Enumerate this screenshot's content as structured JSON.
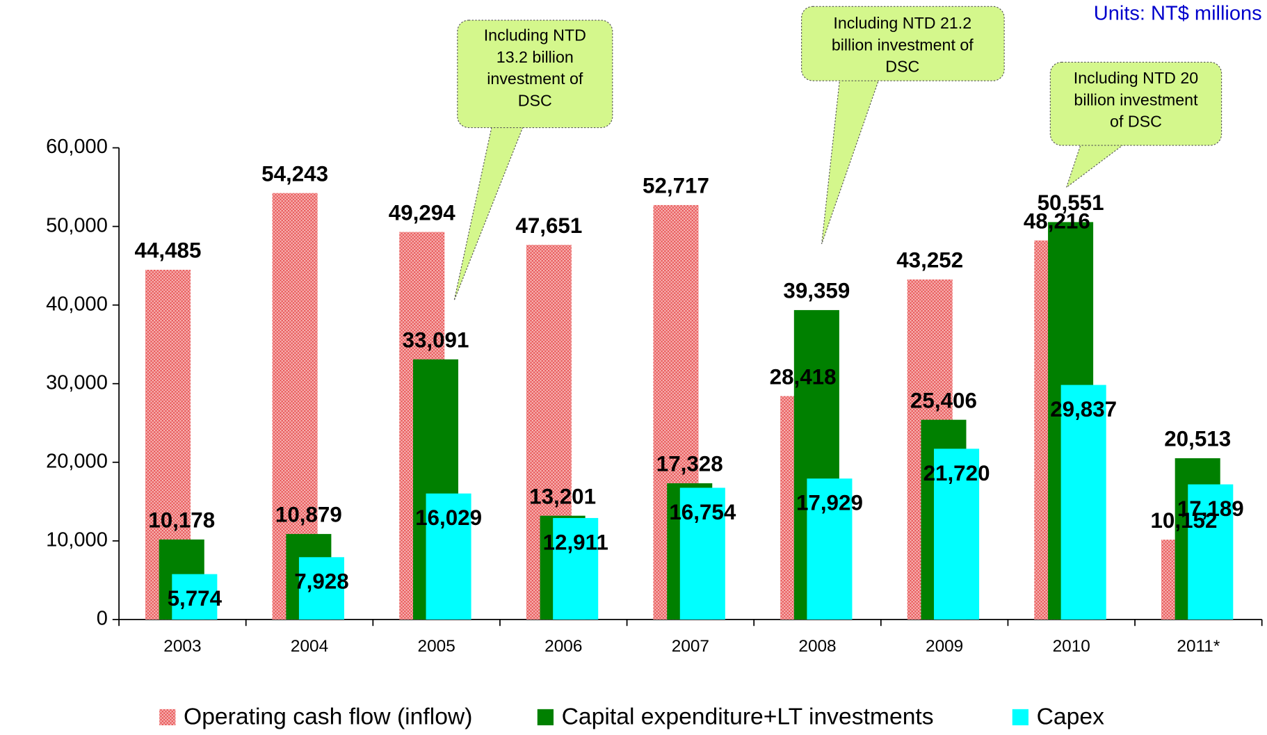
{
  "chart_data": {
    "type": "bar",
    "units": "Units: NT$ millions",
    "categories": [
      "2003",
      "2004",
      "2005",
      "2006",
      "2007",
      "2008",
      "2009",
      "2010",
      "2011*"
    ],
    "series": [
      {
        "name": "Operating cash flow (inflow)",
        "color": "#f08080",
        "values": [
          44485,
          54243,
          49294,
          47651,
          52717,
          28418,
          43252,
          48216,
          10152
        ],
        "value_labels": [
          "44,485",
          "54,243",
          "49,294",
          "47,651",
          "52,717",
          "28,418",
          "43,252",
          "48,216",
          "10,152"
        ]
      },
      {
        "name": "Capital expenditure+LT investments",
        "color": "#008000",
        "values": [
          10178,
          10879,
          33091,
          13201,
          17328,
          39359,
          25406,
          50551,
          20513
        ],
        "value_labels": [
          "10,178",
          "10,879",
          "33,091",
          "13,201",
          "17,328",
          "39,359",
          "25,406",
          "50,551",
          "20,513"
        ]
      },
      {
        "name": "Capex",
        "color": "#00ffff",
        "values": [
          5774,
          7928,
          16029,
          12911,
          16754,
          17929,
          21720,
          29837,
          17189
        ],
        "value_labels": [
          "5,774",
          "7,928",
          "16,029",
          "12,911",
          "16,754",
          "17,929",
          "21,720",
          "29,837",
          "17,189"
        ]
      }
    ],
    "annotations": [
      {
        "lines": [
          "Including NTD",
          "13.2 billion",
          "investment of",
          "DSC"
        ]
      },
      {
        "lines": [
          "Including NTD 21.2",
          "billion investment of",
          "DSC"
        ]
      },
      {
        "lines": [
          "Including NTD 20",
          "billion investment",
          "of DSC"
        ]
      }
    ],
    "ylim": [
      0,
      60000
    ],
    "yticks": [
      0,
      {
        "value": 10000,
        "label": "10,000"
      },
      {
        "value": 20000,
        "label": "20,000"
      },
      {
        "value": 30000,
        "label": "30,000"
      },
      {
        "value": 40000,
        "label": "40,000"
      },
      {
        "value": 50000,
        "label": "50,000"
      },
      {
        "value": 60000,
        "label": "60,000"
      }
    ],
    "legend": "bottom"
  }
}
